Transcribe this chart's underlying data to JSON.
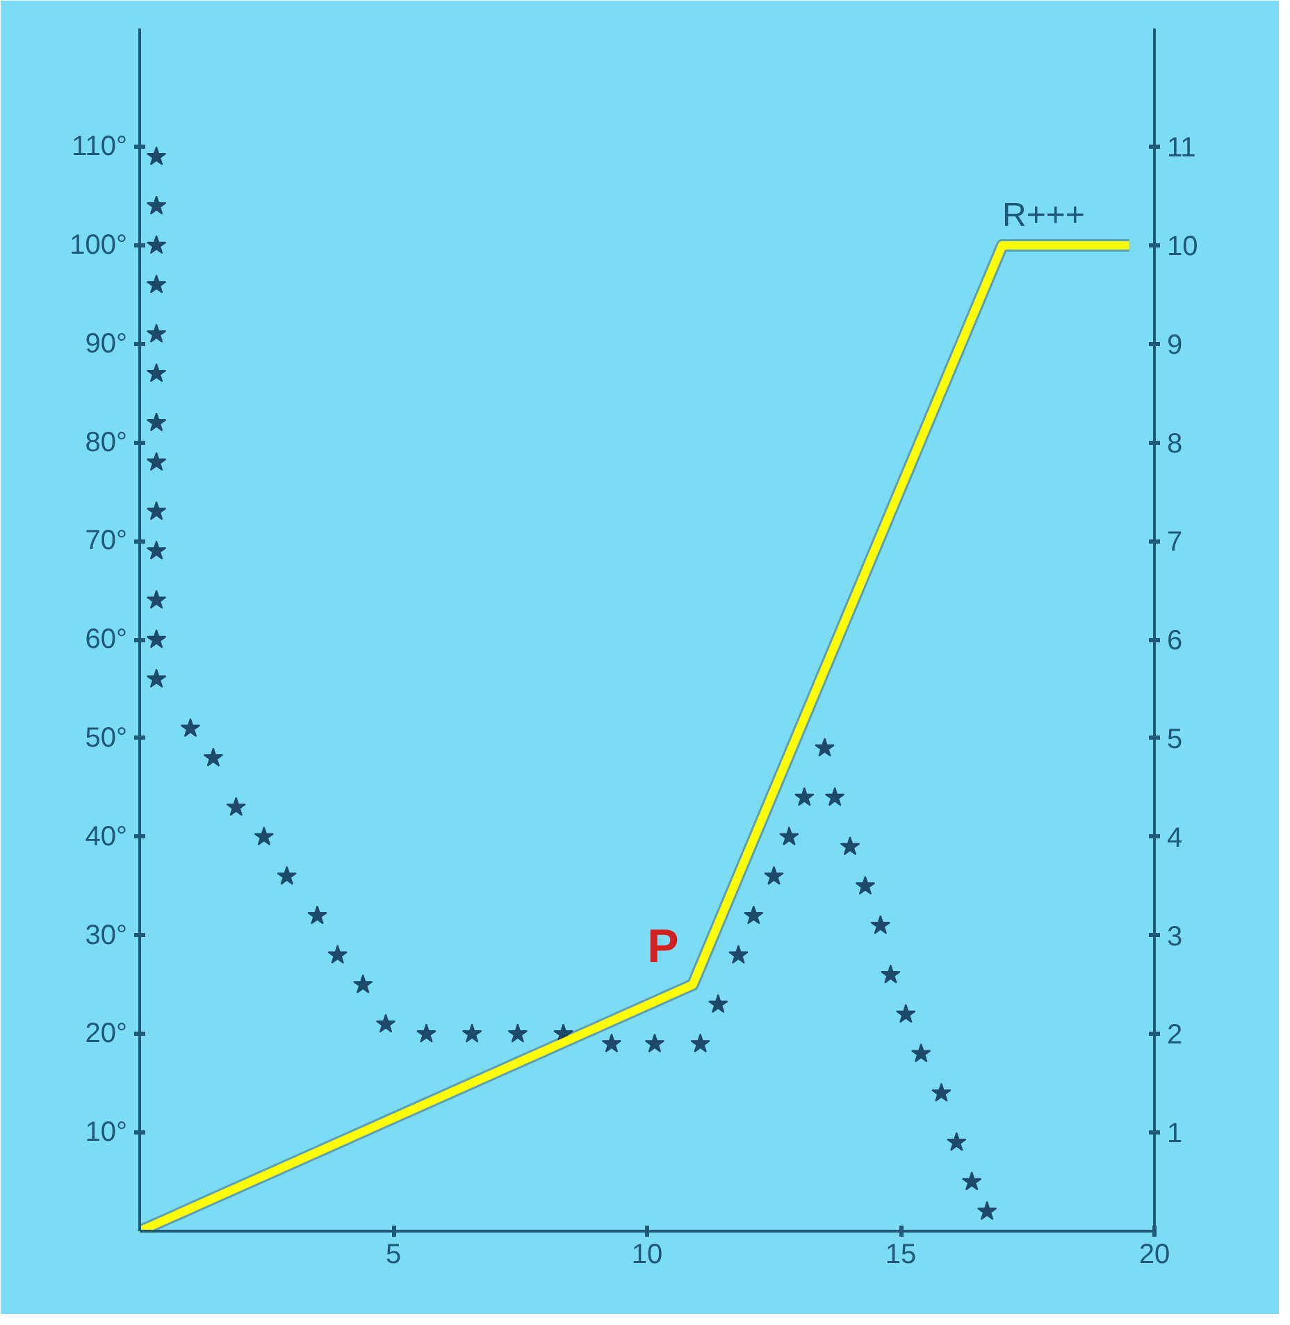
{
  "chart_data": {
    "type": "scatter",
    "grid": false,
    "xlim": [
      0,
      20
    ],
    "xticks": [
      5,
      10,
      15,
      20
    ],
    "ylim": [
      0,
      122
    ],
    "yticks": [
      {
        "value": 10,
        "label": "10°"
      },
      {
        "value": 20,
        "label": "20°"
      },
      {
        "value": 30,
        "label": "30°"
      },
      {
        "value": 40,
        "label": "40°"
      },
      {
        "value": 50,
        "label": "50°"
      },
      {
        "value": 60,
        "label": "60°"
      },
      {
        "value": 70,
        "label": "70°"
      },
      {
        "value": 80,
        "label": "80°"
      },
      {
        "value": 90,
        "label": "90°"
      },
      {
        "value": 100,
        "label": "100°"
      },
      {
        "value": 110,
        "label": "110°"
      }
    ],
    "y2lim": [
      0,
      12.2
    ],
    "y2ticks": [
      1,
      2,
      3,
      4,
      5,
      6,
      7,
      8,
      9,
      10,
      11
    ],
    "series": [
      {
        "marker": "star",
        "color": "#1d4a6b",
        "x": [
          0.33,
          0.33,
          0.33,
          0.33,
          0.33,
          0.33,
          0.33,
          0.33,
          0.33,
          0.33,
          0.33,
          0.33,
          0.33,
          1.0,
          1.45,
          1.9,
          2.45,
          2.9,
          3.5,
          3.9,
          4.4,
          4.85,
          5.65,
          6.55,
          7.45,
          8.35,
          9.3,
          10.15,
          11.05,
          11.4,
          11.8,
          12.1,
          12.5,
          12.8,
          13.1,
          13.5,
          13.7,
          14.0,
          14.3,
          14.6,
          14.8,
          15.1,
          15.4,
          15.8,
          16.1,
          16.4,
          16.7
        ],
        "values": [
          109,
          104,
          100,
          96,
          91,
          87,
          82,
          78,
          73,
          69,
          64,
          60,
          56,
          51,
          48,
          43,
          40,
          36,
          32,
          28,
          25,
          21,
          20,
          20,
          20,
          20,
          19,
          19,
          19,
          23,
          28,
          32,
          36,
          40,
          44,
          49,
          44,
          39,
          35,
          31,
          26,
          22,
          18,
          14,
          9,
          5,
          2
        ]
      },
      {
        "type": "line",
        "axis": "y2",
        "color": "#ffff00",
        "line_style": "solid",
        "x": [
          0,
          10.9,
          17,
          19.5
        ],
        "values": [
          0,
          2.5,
          10,
          10
        ]
      }
    ],
    "annotations": [
      {
        "text": "P",
        "x": 10.9,
        "y": 25
      },
      {
        "text": "R+++",
        "x": 17,
        "y": 100
      }
    ]
  }
}
